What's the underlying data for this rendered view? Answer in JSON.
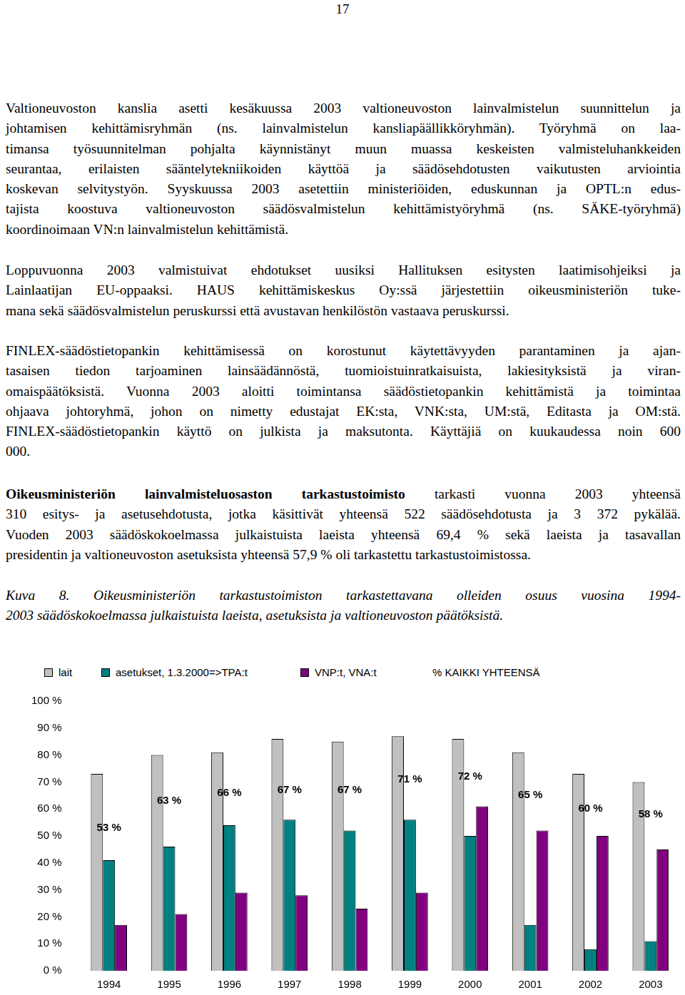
{
  "page_number": "17",
  "paragraphs": [
    {
      "lines": [
        "Valtioneuvoston kanslia asetti kesäkuussa 2003 valtioneuvoston lainvalmistelun suunnittelun ja",
        "johtamisen kehittämisryhmän (ns. lainvalmistelun kansliapäällikköryhmän). Työryhmä on laa-",
        "timansa työsuunnitelman pohjalta käynnistänyt muun muassa keskeisten valmisteluhankkeiden",
        "seurantaa, erilaisten sääntelytekniikoiden käyttöä ja säädösehdotusten vaikutusten arviointia",
        "koskevan selvitystyön. Syyskuussa 2003 asetettiin ministeriöiden, eduskunnan ja OPTL:n edus-",
        "tajista koostuva valtioneuvoston säädösvalmistelun kehittämistyöryhmä (ns. SÄKE-työryhmä)",
        "koordinoimaan VN:n lainvalmistelun kehittämistä."
      ]
    },
    {
      "lines": [
        "Loppuvuonna 2003 valmistuivat ehdotukset uusiksi Hallituksen esitysten laatimisohjeiksi ja",
        "Lainlaatijan EU-oppaaksi. HAUS kehittämiskeskus Oy:ssä järjestettiin oikeusministeriön tuke-",
        "mana sekä säädösvalmistelun peruskurssi että avustavan henkilöstön vastaava peruskurssi."
      ]
    },
    {
      "lines": [
        "FINLEX-säädöstietopankin kehittämisessä on korostunut käytettävyyden parantaminen ja ajan-",
        "tasaisen tiedon tarjoaminen lainsäädännöstä, tuomioistuinratkaisuista, lakiesityksistä ja viran-",
        "omaispäätöksistä. Vuonna 2003 aloitti toimintansa säädöstietopankin kehittämistä ja toimintaa",
        "ohjaava johtoryhmä, johon on nimetty edustajat EK:sta, VNK:sta, UM:stä, Editasta ja OM:stä.",
        "FINLEX-säädöstietopankin käyttö on julkista ja maksutonta. Käyttäjiä on kuukaudessa noin 600",
        "000."
      ]
    },
    {
      "bold": "Oikeusministeriön lainvalmisteluosaston tarkastustoimisto",
      "lines": [
        " tarkasti vuonna 2003 yhteensä",
        "310 esitys- ja asetusehdotusta, jotka käsittivät yhteensä 522 säädösehdotusta ja 3 372 pykälää.",
        "Vuoden 2003 säädöskokoelmassa julkaistuista laeista yhteensä 69,4 % sekä laeista ja tasavallan",
        "presidentin ja valtioneuvoston asetuksista yhteensä 57,9 % oli tarkastettu tarkastustoimistossa."
      ]
    }
  ],
  "caption": {
    "lines": [
      "Kuva 8. Oikeusministeriön tarkastustoimiston tarkastettavana olleiden osuus vuosina 1994-",
      "2003 säädöskokoelmassa julkaistuista laeista, asetuksista ja valtioneuvoston päätöksistä."
    ]
  },
  "chart_data": {
    "type": "bar",
    "categories": [
      "1994",
      "1995",
      "1996",
      "1997",
      "1998",
      "1999",
      "2000",
      "2001",
      "2002",
      "2003"
    ],
    "series": [
      {
        "name": "lait",
        "color": "#c0c0c0",
        "values": [
          73,
          80,
          81,
          86,
          85,
          87,
          86,
          81,
          73,
          70
        ]
      },
      {
        "name": "asetukset, 1.3.2000=>TPA:t",
        "color": "#008080",
        "values": [
          41,
          46,
          54,
          56,
          52,
          56,
          50,
          17,
          8,
          11
        ]
      },
      {
        "name": "VNP:t, VNA:t",
        "color": "#800080",
        "values": [
          17,
          21,
          29,
          28,
          23,
          29,
          61,
          52,
          50,
          45
        ]
      },
      {
        "name": "% KAIKKI YHTEENSÄ",
        "type": "line",
        "line_style": "none",
        "marker": "none",
        "color": "#000000",
        "data_labels": true,
        "values": [
          53,
          63,
          66,
          67,
          67,
          71,
          72,
          65,
          60,
          58
        ],
        "value_labels": [
          "53 %",
          "63 %",
          "66 %",
          "67 %",
          "67 %",
          "71 %",
          "72 %",
          "65 %",
          "60 %",
          "58 %"
        ]
      }
    ],
    "ylim": [
      0,
      100
    ],
    "yticks": [
      {
        "value": 0,
        "label": "0 %"
      },
      {
        "value": 10,
        "label": "10 %"
      },
      {
        "value": 20,
        "label": "20 %"
      },
      {
        "value": 30,
        "label": "30 %"
      },
      {
        "value": 40,
        "label": "40 %"
      },
      {
        "value": 50,
        "label": "50 %"
      },
      {
        "value": 60,
        "label": "60 %"
      },
      {
        "value": 70,
        "label": "70 %"
      },
      {
        "value": 80,
        "label": "80 %"
      },
      {
        "value": 90,
        "label": "90 %"
      },
      {
        "value": 100,
        "label": "100 %"
      }
    ],
    "grid": false,
    "legend": "top"
  }
}
